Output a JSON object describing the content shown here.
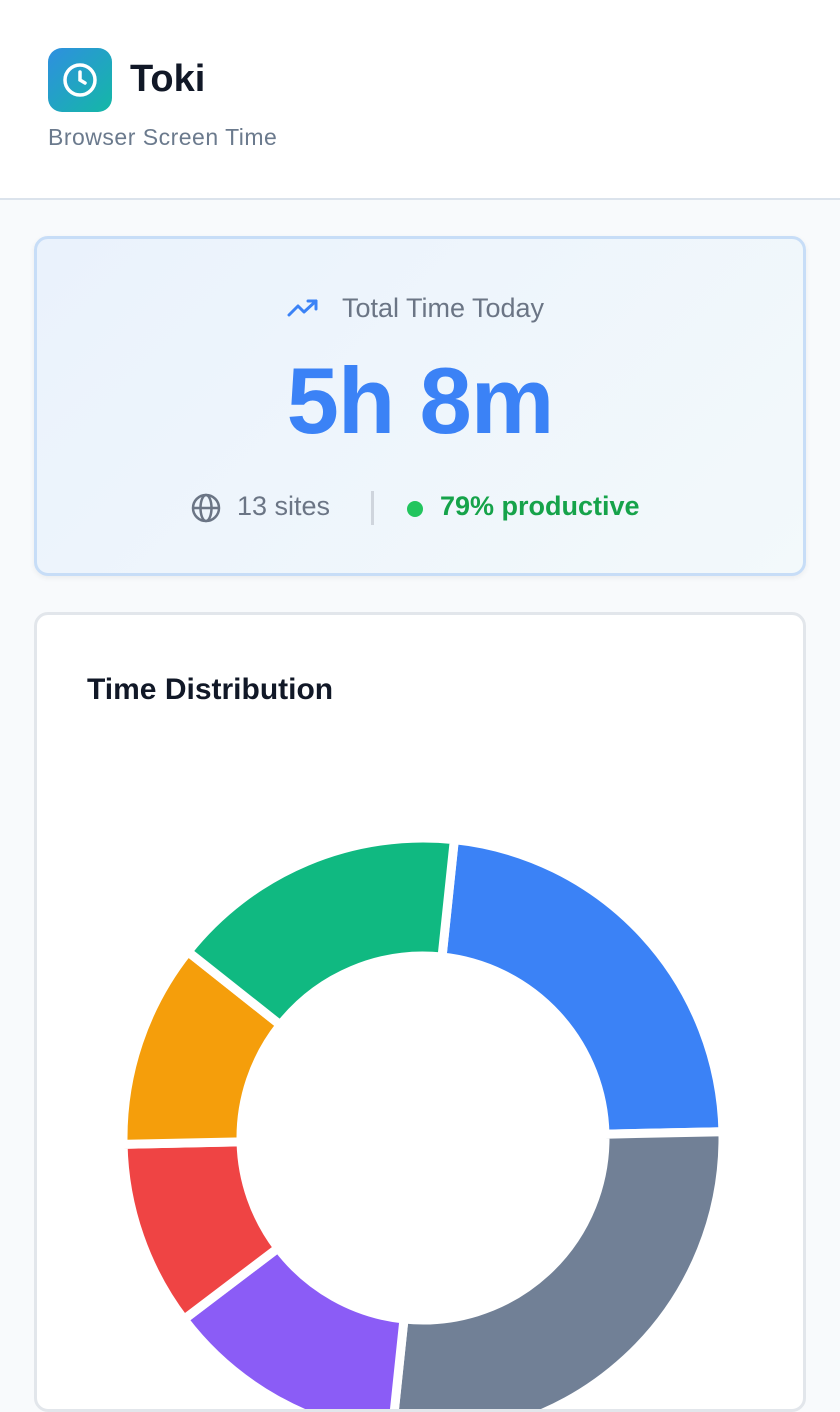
{
  "header": {
    "title": "Toki",
    "subtitle": "Browser Screen Time"
  },
  "summary": {
    "label": "Total Time Today",
    "value": "5h 8m",
    "sites": "13 sites",
    "productive": "79% productive"
  },
  "chart_data": {
    "type": "pie",
    "title": "Time Distribution",
    "values": [
      23,
      27,
      13,
      10,
      11,
      16
    ],
    "colors": [
      "#3b82f6",
      "#718096",
      "#8b5cf6",
      "#ef4444",
      "#f59e0b",
      "#10b981"
    ]
  }
}
